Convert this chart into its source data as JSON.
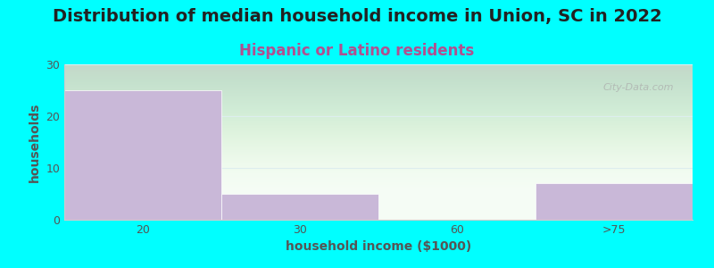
{
  "title": "Distribution of median household income in Union, SC in 2022",
  "subtitle": "Hispanic or Latino residents",
  "xlabel": "household income ($1000)",
  "ylabel": "households",
  "background_color": "#00FFFF",
  "bar_color": "#c9b8d8",
  "categories": [
    "20",
    "30",
    "60",
    ">75"
  ],
  "bin_edges": [
    0,
    1,
    2,
    3,
    4
  ],
  "values": [
    25,
    5,
    0,
    7
  ],
  "ylim": [
    0,
    30
  ],
  "yticks": [
    0,
    10,
    20,
    30
  ],
  "title_fontsize": 14,
  "subtitle_fontsize": 12,
  "subtitle_color": "#b05090",
  "axis_label_fontsize": 10,
  "tick_fontsize": 9,
  "watermark": "City-Data.com",
  "watermark_color": "#aaaaaa"
}
